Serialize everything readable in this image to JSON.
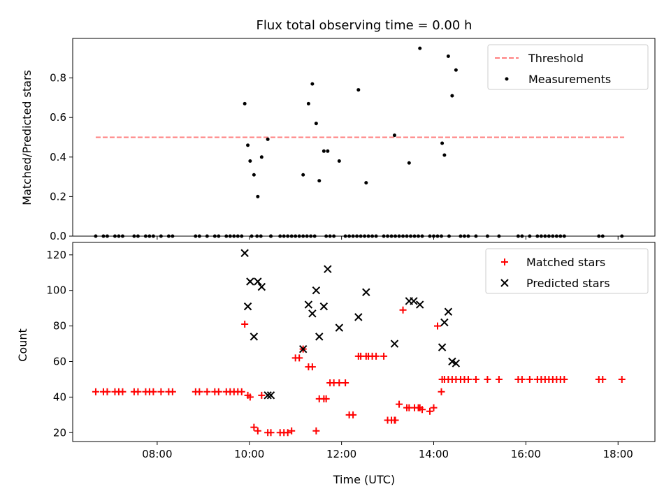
{
  "chart_data": [
    {
      "type": "scatter",
      "panel": "top",
      "title": "Flux total observing time = 0.00 h",
      "ylabel": "Matched/Predicted stars",
      "xlabel": "",
      "xlim": [
        "06:10",
        "18:48"
      ],
      "ylim": [
        0,
        1.0
      ],
      "yticks": [
        0.0,
        0.2,
        0.4,
        0.6,
        0.8
      ],
      "ytick_labels": [
        "0.0",
        "0.2",
        "0.4",
        "0.6",
        "0.8"
      ],
      "legend": {
        "placement": "top-right",
        "entries": [
          "Threshold",
          "Measurements"
        ]
      },
      "grid": false,
      "series": [
        {
          "name": "Threshold",
          "kind": "dashed-line",
          "color": "#ff7f7f",
          "x": [
            "06:40",
            "18:08"
          ],
          "y": [
            0.5,
            0.5
          ]
        },
        {
          "name": "Measurements",
          "kind": "points",
          "color": "#000000",
          "x": [
            "09:54",
            "09:58",
            "10:01",
            "10:06",
            "10:11",
            "10:16",
            "10:24",
            "10:28",
            "11:10",
            "11:17",
            "11:22",
            "11:27",
            "11:31",
            "11:37",
            "11:42",
            "11:57",
            "12:22",
            "12:32",
            "13:09",
            "13:28",
            "13:42",
            "14:11",
            "14:14",
            "14:19",
            "14:24",
            "14:29",
            "06:40",
            "06:50",
            "06:55",
            "07:05",
            "07:10",
            "07:15",
            "07:30",
            "07:35",
            "07:45",
            "07:50",
            "07:55",
            "08:05",
            "08:15",
            "08:20",
            "08:50",
            "08:55",
            "09:05",
            "09:15",
            "09:20",
            "09:30",
            "09:35",
            "09:40",
            "09:45",
            "09:50",
            "10:03",
            "10:10",
            "10:15",
            "10:28",
            "10:40",
            "10:45",
            "10:50",
            "10:55",
            "11:00",
            "11:05",
            "11:10",
            "11:15",
            "11:20",
            "11:25",
            "11:40",
            "11:45",
            "11:50",
            "12:05",
            "12:10",
            "12:15",
            "12:20",
            "12:25",
            "12:30",
            "12:35",
            "12:40",
            "12:45",
            "12:55",
            "13:00",
            "13:05",
            "13:10",
            "13:15",
            "13:20",
            "13:25",
            "13:30",
            "13:35",
            "13:40",
            "13:45",
            "13:55",
            "14:00",
            "14:05",
            "14:10",
            "14:20",
            "14:35",
            "14:40",
            "14:45",
            "14:55",
            "15:10",
            "15:25",
            "15:50",
            "15:55",
            "16:05",
            "16:15",
            "16:20",
            "16:25",
            "16:30",
            "16:35",
            "16:40",
            "16:45",
            "16:50",
            "17:35",
            "17:40",
            "18:05"
          ],
          "y": [
            0.67,
            0.46,
            0.38,
            0.31,
            0.2,
            0.4,
            0.49,
            0.0,
            0.31,
            0.67,
            0.77,
            0.57,
            0.28,
            0.43,
            0.43,
            0.38,
            0.74,
            0.27,
            0.51,
            0.37,
            0.95,
            0.47,
            0.41,
            0.91,
            0.71,
            0.84,
            0,
            0,
            0,
            0,
            0,
            0,
            0,
            0,
            0,
            0,
            0,
            0,
            0,
            0,
            0,
            0,
            0,
            0,
            0,
            0,
            0,
            0,
            0,
            0,
            0,
            0,
            0,
            0,
            0,
            0,
            0,
            0,
            0,
            0,
            0,
            0,
            0,
            0,
            0,
            0,
            0,
            0,
            0,
            0,
            0,
            0,
            0,
            0,
            0,
            0,
            0,
            0,
            0,
            0,
            0,
            0,
            0,
            0,
            0,
            0,
            0,
            0,
            0,
            0,
            0,
            0,
            0,
            0,
            0,
            0,
            0,
            0,
            0,
            0,
            0,
            0,
            0,
            0,
            0,
            0,
            0,
            0,
            0,
            0,
            0,
            0
          ]
        }
      ]
    },
    {
      "type": "scatter",
      "panel": "bottom",
      "title": "",
      "ylabel": "Count",
      "xlabel": "Time (UTC)",
      "xlim": [
        "06:10",
        "18:48"
      ],
      "xticks": [
        "08:00",
        "10:00",
        "12:00",
        "14:00",
        "16:00",
        "18:00"
      ],
      "ylim": [
        15,
        127
      ],
      "yticks": [
        20,
        40,
        60,
        80,
        100,
        120
      ],
      "ytick_labels": [
        "20",
        "40",
        "60",
        "80",
        "100",
        "120"
      ],
      "legend": {
        "placement": "top-right",
        "entries": [
          "Matched stars",
          "Predicted stars"
        ]
      },
      "grid": false,
      "series": [
        {
          "name": "Matched stars",
          "kind": "plus",
          "color": "#ff0000",
          "x": [
            "06:40",
            "06:50",
            "06:55",
            "07:05",
            "07:10",
            "07:15",
            "07:30",
            "07:35",
            "07:45",
            "07:50",
            "07:55",
            "08:05",
            "08:15",
            "08:20",
            "08:50",
            "08:55",
            "09:05",
            "09:15",
            "09:20",
            "09:30",
            "09:35",
            "09:40",
            "09:45",
            "09:50",
            "09:54",
            "09:58",
            "10:01",
            "10:06",
            "10:11",
            "10:16",
            "10:24",
            "10:28",
            "10:40",
            "10:45",
            "10:50",
            "10:55",
            "11:00",
            "11:05",
            "11:10",
            "11:17",
            "11:22",
            "11:27",
            "11:31",
            "11:37",
            "11:40",
            "11:45",
            "11:50",
            "11:57",
            "12:05",
            "12:10",
            "12:15",
            "12:22",
            "12:25",
            "12:32",
            "12:35",
            "12:40",
            "12:45",
            "12:55",
            "13:00",
            "13:05",
            "13:09",
            "13:10",
            "13:15",
            "13:20",
            "13:25",
            "13:28",
            "13:35",
            "13:40",
            "13:42",
            "13:45",
            "13:55",
            "14:00",
            "14:05",
            "14:10",
            "14:11",
            "14:14",
            "14:19",
            "14:24",
            "14:29",
            "14:35",
            "14:40",
            "14:45",
            "14:55",
            "15:10",
            "15:25",
            "15:50",
            "15:55",
            "16:05",
            "16:15",
            "16:20",
            "16:25",
            "16:30",
            "16:35",
            "16:40",
            "16:45",
            "16:50",
            "17:35",
            "17:40",
            "18:05"
          ],
          "y": [
            43,
            43,
            43,
            43,
            43,
            43,
            43,
            43,
            43,
            43,
            43,
            43,
            43,
            43,
            43,
            43,
            43,
            43,
            43,
            43,
            43,
            43,
            43,
            43,
            81,
            41,
            40,
            23,
            21,
            41,
            20,
            20,
            20,
            20,
            20,
            21,
            62,
            62,
            67,
            57,
            57,
            21,
            39,
            39,
            39,
            48,
            48,
            48,
            48,
            30,
            30,
            63,
            63,
            63,
            63,
            63,
            63,
            63,
            27,
            27,
            27,
            27,
            36,
            89,
            34,
            34,
            34,
            34,
            34,
            33,
            32,
            34,
            80,
            43,
            50,
            50,
            50,
            50,
            50,
            50,
            50,
            50,
            50,
            50,
            50,
            50,
            50,
            50,
            50,
            50,
            50,
            50,
            50,
            50,
            50,
            50,
            50,
            50,
            50
          ]
        },
        {
          "name": "Predicted stars",
          "kind": "cross",
          "color": "#000000",
          "x": [
            "09:54",
            "09:58",
            "10:01",
            "10:06",
            "10:11",
            "10:16",
            "10:24",
            "10:28",
            "11:10",
            "11:17",
            "11:22",
            "11:27",
            "11:31",
            "11:37",
            "11:42",
            "11:57",
            "12:22",
            "12:32",
            "13:09",
            "13:28",
            "13:34",
            "13:42",
            "14:11",
            "14:14",
            "14:19",
            "14:24",
            "14:29"
          ],
          "y": [
            121,
            91,
            105,
            74,
            105,
            102,
            41,
            41,
            67,
            92,
            87,
            100,
            74,
            91,
            112,
            79,
            85,
            99,
            70,
            94,
            94,
            92,
            68,
            82,
            88,
            60,
            59
          ]
        }
      ]
    }
  ]
}
